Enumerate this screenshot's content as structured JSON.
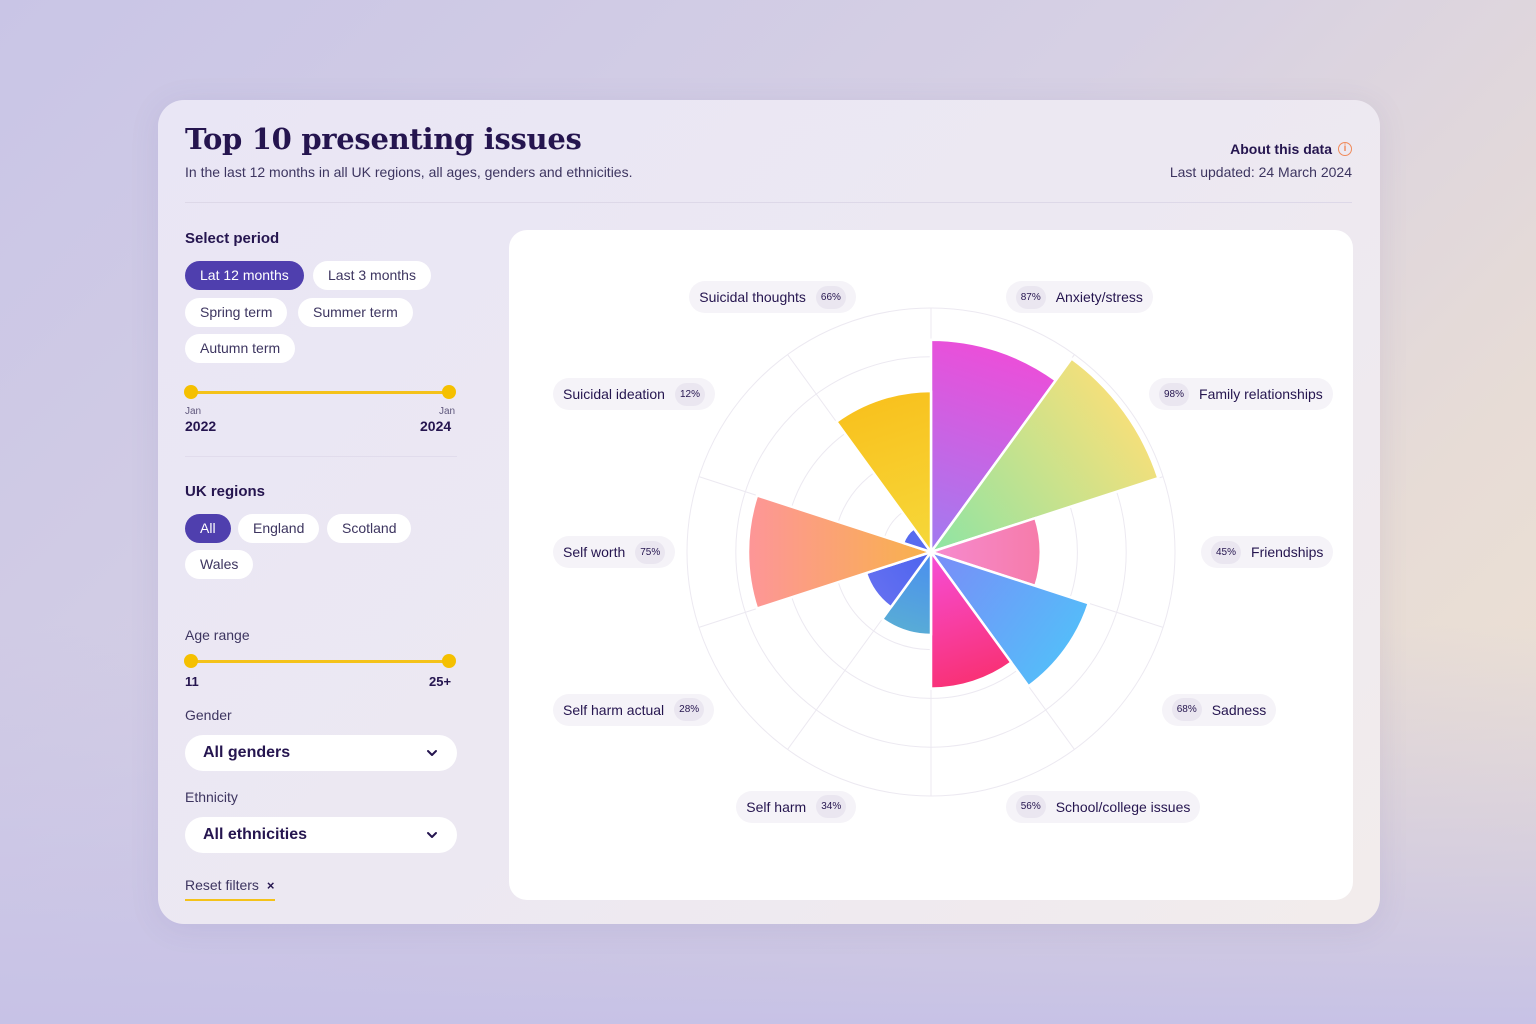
{
  "header": {
    "title": "Top 10 presenting issues",
    "subtitle": "In the last 12 months in all UK regions, all ages, genders and ethnicities.",
    "about_label": "About this data",
    "info_icon": "info-circle-icon",
    "last_updated": "Last updated: 24 March 2024"
  },
  "filters": {
    "period": {
      "label": "Select period",
      "options": [
        "Lat 12 months",
        "Last 3 months",
        "Spring term",
        "Summer term",
        "Autumn term"
      ],
      "selected": "Lat 12 months",
      "range": {
        "start_month": "Jan",
        "start_year": "2022",
        "end_month": "Jan",
        "end_year": "2024"
      }
    },
    "regions": {
      "label": "UK regions",
      "options": [
        "All",
        "England",
        "Scotland",
        "Wales"
      ],
      "selected": "All"
    },
    "age": {
      "label": "Age range",
      "min": "11",
      "max": "25+"
    },
    "gender": {
      "label": "Gender",
      "value": "All genders",
      "icon": "chevron-down-icon"
    },
    "ethnicity": {
      "label": "Ethnicity",
      "value": "All ethnicities",
      "icon": "chevron-down-icon"
    },
    "reset_label": "Reset filters",
    "reset_icon": "close-icon",
    "reset_symbol": "×"
  },
  "chart_data": {
    "type": "polar-area",
    "title": "",
    "categories": [
      {
        "name": "Anxiety/stress",
        "pct": "87%",
        "value": 0.87,
        "colors": [
          "#a07cf0",
          "#f648d6"
        ]
      },
      {
        "name": "Family relationships",
        "pct": "98%",
        "value": 0.98,
        "colors": [
          "#8de4a4",
          "#f6e07a"
        ]
      },
      {
        "name": "Friendships",
        "pct": "45%",
        "value": 0.45,
        "colors": [
          "#f68ad0",
          "#f66a7a"
        ]
      },
      {
        "name": "Sadness",
        "pct": "68%",
        "value": 0.68,
        "colors": [
          "#7a8cf8",
          "#44d2fa"
        ]
      },
      {
        "name": "School/college issues",
        "pct": "56%",
        "value": 0.56,
        "colors": [
          "#f64ed8",
          "#fb1a28"
        ]
      },
      {
        "name": "Self harm",
        "pct": "34%",
        "value": 0.34,
        "colors": [
          "#4a8ef0",
          "#74e6a4"
        ]
      },
      {
        "name": "Self harm actual",
        "pct": "28%",
        "value": 0.28,
        "colors": [
          "#4c64ee",
          "#a08cf8"
        ]
      },
      {
        "name": "Self worth",
        "pct": "75%",
        "value": 0.75,
        "colors": [
          "#f8b24a",
          "#ff8cb2"
        ]
      },
      {
        "name": "Suicidal ideation",
        "pct": "12%",
        "value": 0.12,
        "colors": [
          "#5a6ef0",
          "#3c54e8"
        ]
      },
      {
        "name": "Suicidal thoughts",
        "pct": "66%",
        "value": 0.66,
        "colors": [
          "#f6d83a",
          "#fab610"
        ]
      }
    ],
    "grid": true,
    "rings": 5
  }
}
